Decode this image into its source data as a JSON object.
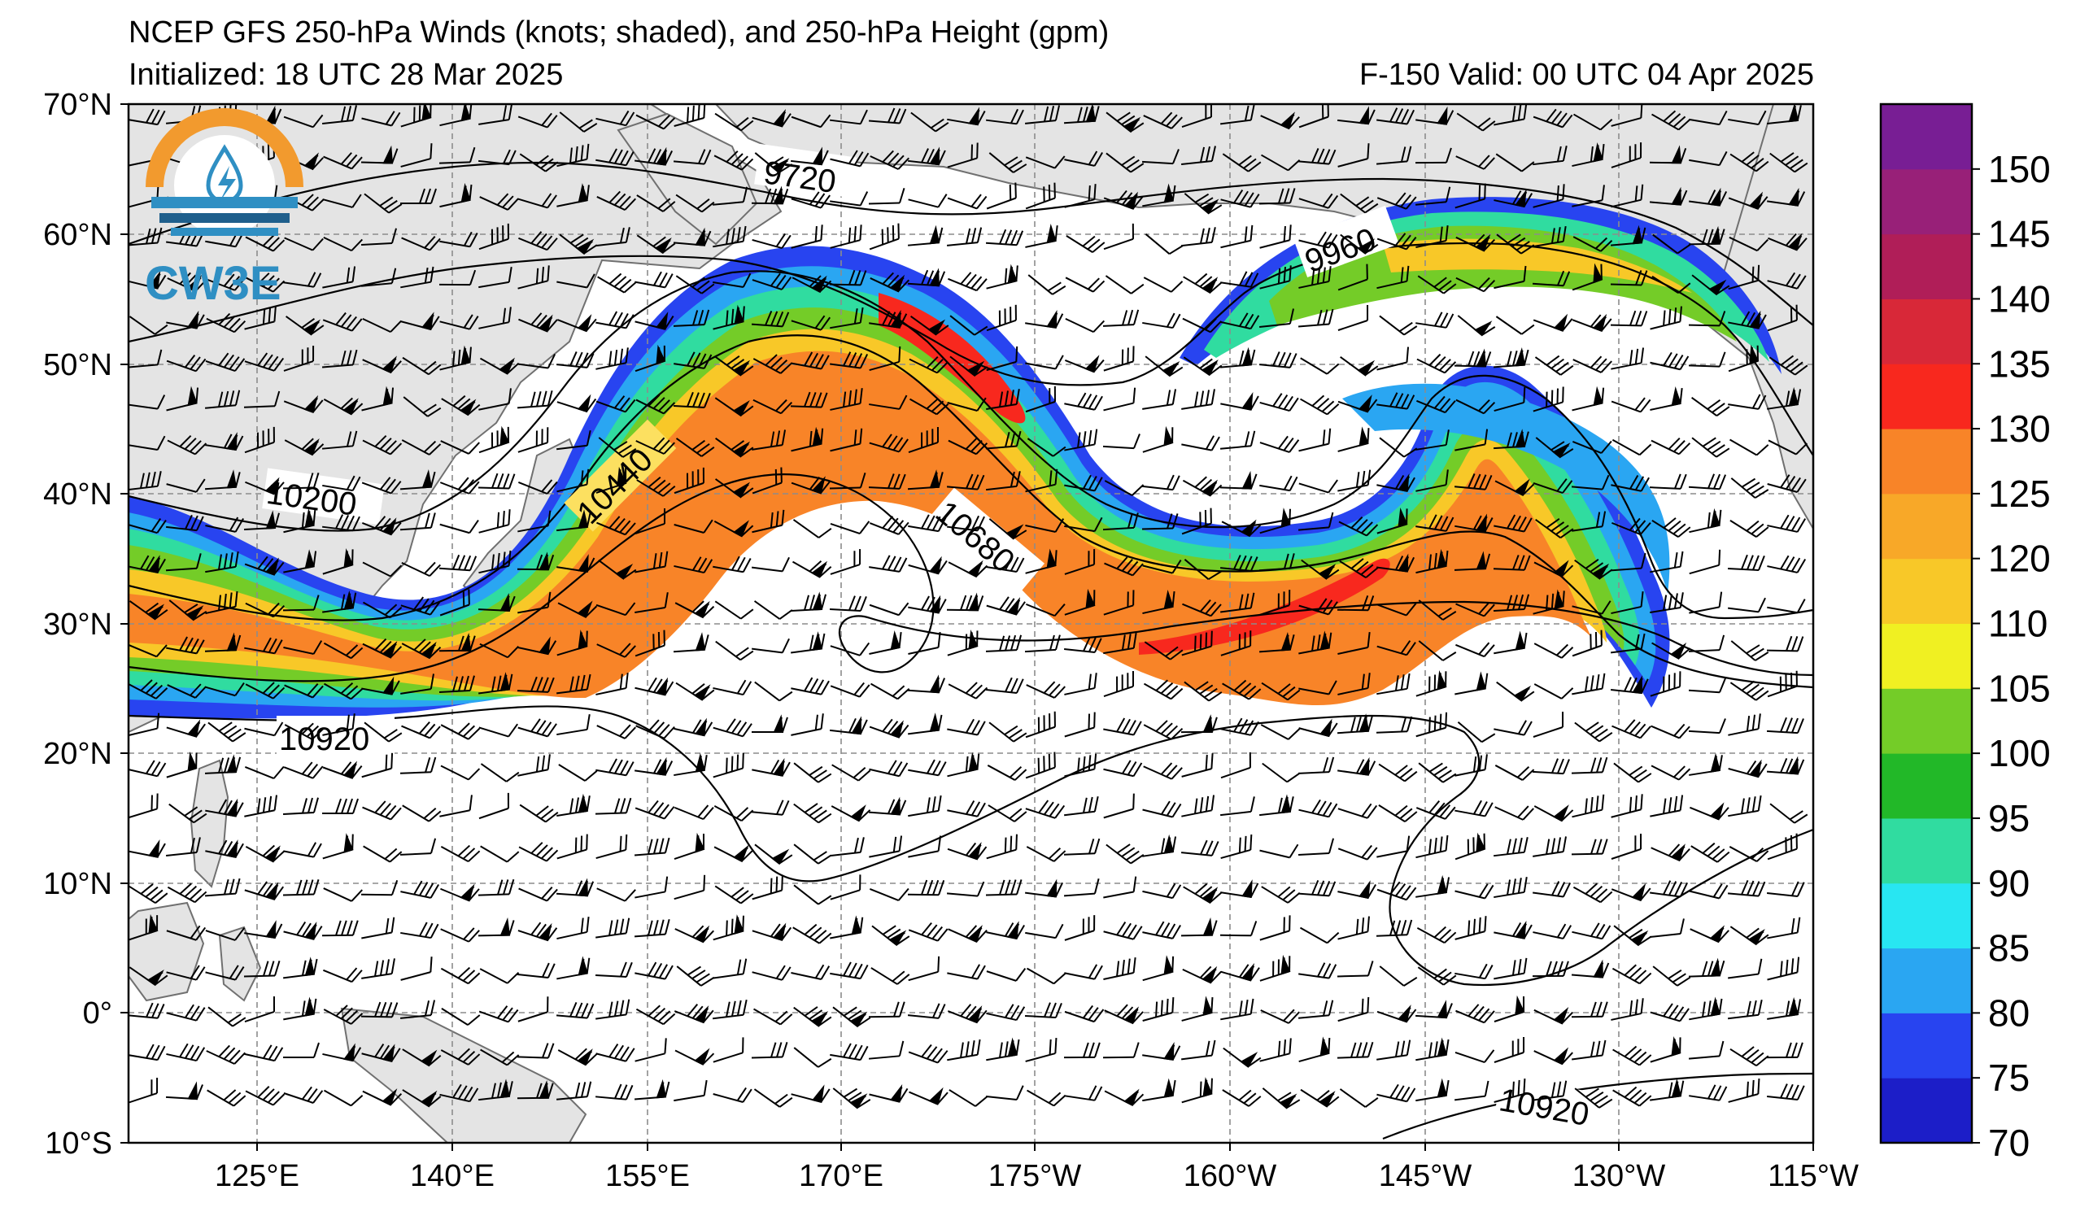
{
  "header": {
    "title": "NCEP GFS 250-hPa Winds (knots; shaded), and 250-hPa Height (gpm)",
    "initialized": "Initialized: 18 UTC 28 Mar 2025",
    "valid": "F-150  Valid: 00 UTC 04 Apr 2025"
  },
  "logo": {
    "text": "CW3E",
    "colors": {
      "orange": "#f29a2e",
      "blue": "#2f8fc3",
      "navy": "#1f5f8c"
    }
  },
  "axes": {
    "lon_ticks": [
      "125°E",
      "140°E",
      "155°E",
      "170°E",
      "175°W",
      "160°W",
      "145°W",
      "130°W",
      "115°W"
    ],
    "lat_ticks": [
      "70°N",
      "60°N",
      "50°N",
      "40°N",
      "30°N",
      "20°N",
      "10°N",
      "0°",
      "10°S"
    ],
    "lon_range": [
      "115°E",
      "115°W"
    ],
    "lat_range": [
      "10°S",
      "70°N"
    ],
    "grid": "dashed gray"
  },
  "contour_labels": [
    "9720",
    "9960",
    "10200",
    "10440",
    "10680",
    "10920",
    "10920"
  ],
  "colorbar": {
    "labels": [
      "150",
      "145",
      "140",
      "135",
      "130",
      "125",
      "120",
      "110",
      "105",
      "100",
      "95",
      "90",
      "85",
      "80",
      "75",
      "70"
    ],
    "colors": [
      "#1c1ec8",
      "#2844f0",
      "#2aa6f2",
      "#28e6f2",
      "#30dca0",
      "#22b828",
      "#74cc28",
      "#f0f022",
      "#f8c828",
      "#f8a828",
      "#f88428",
      "#f8281e",
      "#d82838",
      "#b01e58",
      "#982078",
      "#781e94"
    ]
  },
  "map_colors": {
    "land": "#e4e4e4",
    "coast": "#707070",
    "ocean": "#ffffff",
    "grid": "#8c8c8c",
    "contour": "#000000"
  }
}
